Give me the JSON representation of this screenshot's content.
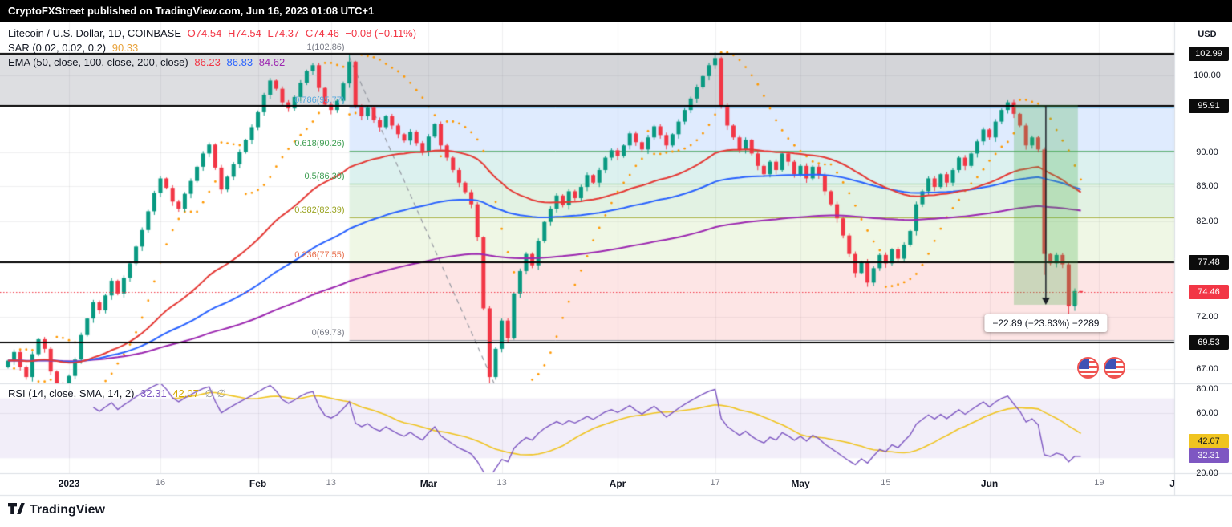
{
  "header": {
    "publish_text": "CryptoFXStreet published on TradingView.com, Jun 16, 2023 01:08 UTC+1"
  },
  "legend": {
    "symbol": "Litecoin / U.S. Dollar, 1D, COINBASE",
    "ohlc": {
      "open": "O74.54",
      "high": "H74.54",
      "low": "L74.37",
      "close": "C74.46",
      "change": "−0.08 (−0.11%)"
    },
    "sar": {
      "label": "SAR (0.02, 0.02, 0.2)",
      "value": "90.33"
    },
    "ema": {
      "label": "EMA (50, close, 100, close, 200, close)",
      "v50": "86.23",
      "v100": "86.83",
      "v200": "84.62"
    }
  },
  "rsi_legend": {
    "label": "RSI (14, close, SMA, 14, 2)",
    "rsi": "32.31",
    "ma": "42.07",
    "extra": "∅ ∅"
  },
  "price_axis": {
    "currency": "USD",
    "ticks": [
      100.0,
      90.0,
      86.0,
      82.0,
      72.0,
      67.0
    ],
    "rsi_ticks": [
      80.0,
      60.0,
      20.0
    ]
  },
  "time_axis": {
    "labels": [
      {
        "text": "2023",
        "index": 10,
        "major": true
      },
      {
        "text": "16",
        "index": 25,
        "major": false
      },
      {
        "text": "Feb",
        "index": 41,
        "major": true
      },
      {
        "text": "13",
        "index": 53,
        "major": false
      },
      {
        "text": "Mar",
        "index": 69,
        "major": true
      },
      {
        "text": "13",
        "index": 81,
        "major": false
      },
      {
        "text": "Apr",
        "index": 100,
        "major": true
      },
      {
        "text": "17",
        "index": 116,
        "major": false
      },
      {
        "text": "May",
        "index": 130,
        "major": true
      },
      {
        "text": "15",
        "index": 144,
        "major": false
      },
      {
        "text": "Jun",
        "index": 161,
        "major": true
      },
      {
        "text": "19",
        "index": 179,
        "major": false
      },
      {
        "text": "J",
        "index": 191,
        "major": true
      }
    ]
  },
  "footer": {
    "brand": "TradingView"
  },
  "colors": {
    "up": "#089981",
    "down": "#f23645",
    "ema50": "#e53935",
    "ema100": "#2962ff",
    "ema200": "#9c27b0",
    "sar": "#ff9800",
    "grid": "rgba(42,46,57,0.07)",
    "gray_band": "rgba(134,137,147,0.28)",
    "price_line": "#000000",
    "last_price": "#f23645",
    "rsi_line": "#7e57c2",
    "rsi_ma": "#f0c420",
    "rsi_band": "rgba(126,87,194,0.10)",
    "separator": "#dcdfe5",
    "trendline": "#9598a1",
    "measure_fill": "rgba(76,175,80,0.28)",
    "measure_arrow": "#1b1f27"
  },
  "chart_data": {
    "type": "candlestick",
    "symbol": "Litecoin / U.S. Dollar",
    "exchange": "COINBASE",
    "timeframe": "1D",
    "scale": "log",
    "ylim": [
      65,
      104.5
    ],
    "start_date": "2022-12-22",
    "first_open": 67.2,
    "closes": [
      67.8,
      68.6,
      67.2,
      66.3,
      68.4,
      69.8,
      68.9,
      66.8,
      65.6,
      64.9,
      66.4,
      67.9,
      70.2,
      71.8,
      73.4,
      72.6,
      74.1,
      75.6,
      74.3,
      75.9,
      77.4,
      79.2,
      81.0,
      83.1,
      85.2,
      86.9,
      85.8,
      84.2,
      83.4,
      85.1,
      86.6,
      88.3,
      89.9,
      91.0,
      88.2,
      85.6,
      87.1,
      88.6,
      90.1,
      91.6,
      93.2,
      95.1,
      97.4,
      99.3,
      98.2,
      96.4,
      95.6,
      97.1,
      99.0,
      100.6,
      101.4,
      98.3,
      96.1,
      95.4,
      96.6,
      98.9,
      101.9,
      95.8,
      94.6,
      95.7,
      94.1,
      93.2,
      94.6,
      93.4,
      92.3,
      91.5,
      92.6,
      91.2,
      90.1,
      92.0,
      93.6,
      90.9,
      89.4,
      87.9,
      86.4,
      85.3,
      83.9,
      80.2,
      72.8,
      66.3,
      68.9,
      71.6,
      69.9,
      74.3,
      76.6,
      78.4,
      77.2,
      79.8,
      81.9,
      83.4,
      84.9,
      83.8,
      85.4,
      84.6,
      85.9,
      87.3,
      86.4,
      87.9,
      89.4,
      90.3,
      89.6,
      90.9,
      92.4,
      91.3,
      90.4,
      91.9,
      93.3,
      92.2,
      90.9,
      92.3,
      93.9,
      95.4,
      96.9,
      98.4,
      99.9,
      101.4,
      102.4,
      95.9,
      93.4,
      91.9,
      90.4,
      91.6,
      89.9,
      88.4,
      87.4,
      88.9,
      87.9,
      89.9,
      88.9,
      87.4,
      88.4,
      86.9,
      88.3,
      87.3,
      85.4,
      83.9,
      82.3,
      80.4,
      78.4,
      76.4,
      77.6,
      75.4,
      76.9,
      78.3,
      77.4,
      78.9,
      77.9,
      79.4,
      80.9,
      83.9,
      85.4,
      86.9,
      85.9,
      87.4,
      86.4,
      87.9,
      89.4,
      88.4,
      89.9,
      91.4,
      92.9,
      91.9,
      93.9,
      95.4,
      96.4,
      94.9,
      93.4,
      90.9,
      91.9,
      90.4,
      78.4,
      77.4,
      78.3,
      77.3,
      73.0,
      74.54,
      74.46
    ],
    "overrides": {
      "56": {
        "high": 102.86
      },
      "79": {
        "low": 65.3
      },
      "116": {
        "high": 103.2
      },
      "170": {
        "low": 76.2
      },
      "174": {
        "low": 71.81
      },
      "176": {
        "open": 74.54,
        "high": 74.54,
        "low": 74.37
      }
    },
    "last_candle": {
      "open": 74.54,
      "high": 74.54,
      "low": 74.37,
      "close": 74.46,
      "change": -0.08,
      "change_pct": -0.11
    },
    "indicators": {
      "sar": {
        "start": 0.02,
        "step": 0.02,
        "max": 0.2,
        "current": 90.33
      },
      "ema": [
        {
          "length": 50,
          "current": 86.23
        },
        {
          "length": 100,
          "current": 86.83
        },
        {
          "length": 200,
          "current": 84.62
        }
      ],
      "rsi": {
        "length": 14,
        "current": 32.31,
        "ma_length": 14,
        "ma_current": 42.07,
        "band_top": 70,
        "band_bottom": 30
      }
    },
    "fib": {
      "start_index": 56,
      "levels": [
        {
          "ratio": "1",
          "price": 102.86,
          "label": "1(102.86)",
          "color": "#787b86"
        },
        {
          "ratio": "0.786",
          "price": 95.77,
          "label": "0.786(95.77)",
          "color": "#58a8dd"
        },
        {
          "ratio": "0.618",
          "price": 90.26,
          "label": "0.618(90.26)",
          "color": "#3d9d51"
        },
        {
          "ratio": "0.5",
          "price": 86.3,
          "label": "0.5(86.30)",
          "color": "#3d9d51"
        },
        {
          "ratio": "0.382",
          "price": 82.39,
          "label": "0.382(82.39)",
          "color": "#9aa422"
        },
        {
          "ratio": "0.236",
          "price": 77.55,
          "label": "0.236(77.55)",
          "color": "#e8704e"
        },
        {
          "ratio": "0",
          "price": 69.73,
          "label": "0(69.73)",
          "color": "#787b86"
        }
      ],
      "bands": [
        {
          "from": 95.77,
          "to": 102.86,
          "fill": "rgba(134,137,147,0.10)"
        },
        {
          "from": 90.26,
          "to": 95.77,
          "fill": "rgba(59,130,246,0.16)"
        },
        {
          "from": 86.3,
          "to": 90.26,
          "fill": "rgba(38,166,154,0.16)"
        },
        {
          "from": 82.39,
          "to": 86.3,
          "fill": "rgba(76,175,80,0.16)"
        },
        {
          "from": 77.55,
          "to": 82.39,
          "fill": "rgba(139,195,74,0.14)"
        },
        {
          "from": 69.73,
          "to": 77.55,
          "fill": "rgba(239,83,80,0.15)"
        }
      ]
    },
    "price_lines": {
      "values": [
        102.99,
        95.91,
        77.48,
        69.53
      ]
    },
    "last_price": {
      "value": 74.46
    },
    "measure": {
      "start_index": 165,
      "end_index": 175.5,
      "price_top": 96.05,
      "price_bottom": 73.16,
      "label": "−22.89 (−23.83%) −2289"
    },
    "trendline": {
      "start_index": 56,
      "start_price": 102.5,
      "end_index": 80,
      "end_price": 65.4,
      "style": "dashed"
    }
  }
}
